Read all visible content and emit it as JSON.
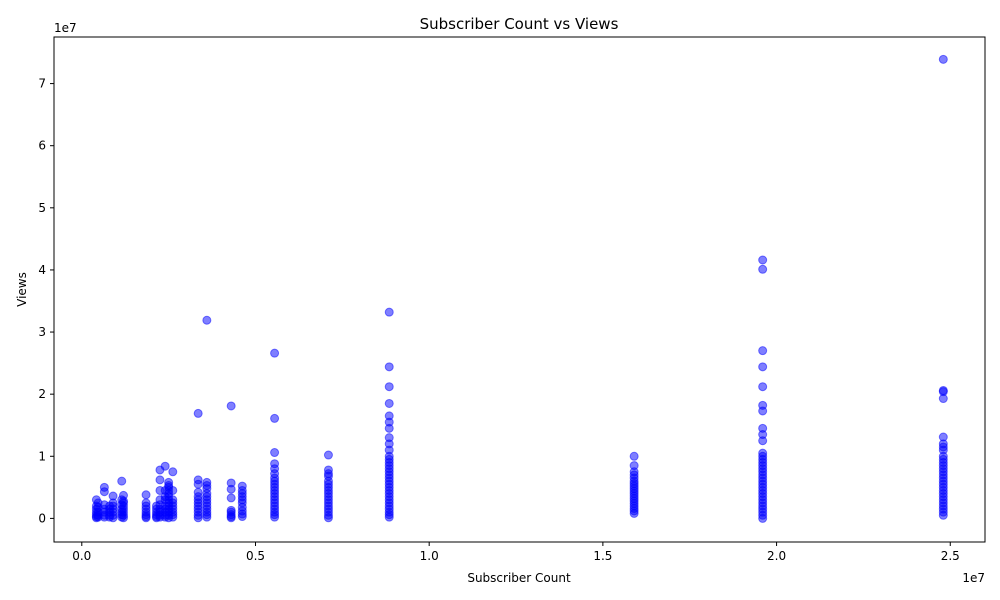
{
  "chart_data": {
    "type": "scatter",
    "title": "Subscriber Count vs Views",
    "xlabel": "Subscriber Count",
    "ylabel": "Views",
    "x_offset_label": "1e7",
    "y_offset_label": "1e7",
    "xlim": [
      -0.08,
      2.6
    ],
    "ylim": [
      -0.38,
      7.75
    ],
    "x_unit_scale": "1e7",
    "y_unit_scale": "1e7",
    "xticks": [
      0.0,
      0.5,
      1.0,
      1.5,
      2.0,
      2.5
    ],
    "xtick_labels": [
      "0.0",
      "0.5",
      "1.0",
      "1.5",
      "2.0",
      "2.5"
    ],
    "yticks": [
      0,
      1,
      2,
      3,
      4,
      5,
      6,
      7
    ],
    "ytick_labels": [
      "0",
      "1",
      "2",
      "3",
      "4",
      "5",
      "6",
      "7"
    ],
    "grid": false,
    "marker_color": "#0000ff",
    "marker_alpha": 0.5,
    "columns": [
      {
        "x": 0.042,
        "values": [
          0.01,
          0.03,
          0.06,
          0.1,
          0.15,
          0.2,
          0.3
        ]
      },
      {
        "x": 0.047,
        "values": [
          0.02,
          0.05,
          0.1,
          0.18,
          0.25
        ]
      },
      {
        "x": 0.065,
        "values": [
          0.02,
          0.05,
          0.1,
          0.15,
          0.22,
          0.43,
          0.5
        ]
      },
      {
        "x": 0.08,
        "values": [
          0.02,
          0.05,
          0.1,
          0.15,
          0.2
        ]
      },
      {
        "x": 0.09,
        "values": [
          0.01,
          0.05,
          0.1,
          0.15,
          0.2,
          0.25,
          0.36
        ]
      },
      {
        "x": 0.115,
        "values": [
          0.02,
          0.06,
          0.1,
          0.15,
          0.22,
          0.3,
          0.6
        ]
      },
      {
        "x": 0.12,
        "values": [
          0.01,
          0.05,
          0.1,
          0.15,
          0.2,
          0.25,
          0.28,
          0.37
        ]
      },
      {
        "x": 0.185,
        "values": [
          0.01,
          0.03,
          0.06,
          0.1,
          0.15,
          0.2,
          0.25,
          0.38
        ]
      },
      {
        "x": 0.215,
        "values": [
          0.01,
          0.03,
          0.06,
          0.1,
          0.15,
          0.2
        ]
      },
      {
        "x": 0.225,
        "values": [
          0.02,
          0.05,
          0.1,
          0.15,
          0.22,
          0.3,
          0.45,
          0.62,
          0.78
        ]
      },
      {
        "x": 0.24,
        "values": [
          0.02,
          0.05,
          0.1,
          0.15,
          0.2,
          0.3,
          0.35,
          0.45,
          0.84
        ]
      },
      {
        "x": 0.25,
        "values": [
          0.01,
          0.05,
          0.1,
          0.15,
          0.2,
          0.25,
          0.3,
          0.35,
          0.4,
          0.45,
          0.5,
          0.53,
          0.58
        ]
      },
      {
        "x": 0.262,
        "values": [
          0.02,
          0.06,
          0.1,
          0.15,
          0.2,
          0.25,
          0.3,
          0.45,
          0.75
        ]
      },
      {
        "x": 0.335,
        "values": [
          0.01,
          0.05,
          0.1,
          0.15,
          0.2,
          0.25,
          0.3,
          0.35,
          0.42,
          0.55,
          0.62,
          1.69
        ]
      },
      {
        "x": 0.36,
        "values": [
          0.02,
          0.06,
          0.1,
          0.15,
          0.2,
          0.25,
          0.3,
          0.35,
          0.4,
          0.48,
          0.53,
          0.58,
          3.19
        ]
      },
      {
        "x": 0.43,
        "values": [
          0.01,
          0.03,
          0.06,
          0.1,
          0.13,
          0.33,
          0.47,
          0.57,
          1.81
        ]
      },
      {
        "x": 0.462,
        "values": [
          0.03,
          0.07,
          0.12,
          0.18,
          0.25,
          0.3,
          0.35,
          0.4,
          0.45,
          0.52
        ]
      },
      {
        "x": 0.555,
        "values": [
          0.02,
          0.06,
          0.1,
          0.15,
          0.2,
          0.25,
          0.3,
          0.35,
          0.4,
          0.45,
          0.5,
          0.55,
          0.6,
          0.65,
          0.72,
          0.8,
          0.88,
          1.06,
          1.61,
          2.66
        ]
      },
      {
        "x": 0.71,
        "values": [
          0.01,
          0.05,
          0.1,
          0.15,
          0.2,
          0.25,
          0.3,
          0.35,
          0.4,
          0.45,
          0.5,
          0.55,
          0.6,
          0.68,
          0.72,
          0.78,
          1.02
        ]
      },
      {
        "x": 0.885,
        "values": [
          0.02,
          0.06,
          0.1,
          0.15,
          0.2,
          0.25,
          0.3,
          0.35,
          0.4,
          0.45,
          0.5,
          0.55,
          0.6,
          0.65,
          0.7,
          0.75,
          0.8,
          0.85,
          0.9,
          0.95,
          1.0,
          1.1,
          1.2,
          1.3,
          1.45,
          1.55,
          1.65,
          1.85,
          2.12,
          2.44,
          3.32
        ]
      },
      {
        "x": 1.59,
        "values": [
          0.08,
          0.12,
          0.16,
          0.2,
          0.24,
          0.28,
          0.32,
          0.36,
          0.4,
          0.44,
          0.48,
          0.52,
          0.56,
          0.6,
          0.65,
          0.7,
          0.75,
          0.85,
          1.0
        ]
      },
      {
        "x": 1.96,
        "values": [
          0.0,
          0.05,
          0.1,
          0.15,
          0.2,
          0.25,
          0.3,
          0.35,
          0.4,
          0.45,
          0.5,
          0.55,
          0.6,
          0.65,
          0.7,
          0.75,
          0.8,
          0.85,
          0.9,
          0.95,
          1.0,
          1.05,
          1.25,
          1.35,
          1.45,
          1.73,
          1.82,
          2.12,
          2.44,
          2.7,
          4.01,
          4.16
        ]
      },
      {
        "x": 2.48,
        "values": [
          0.05,
          0.1,
          0.15,
          0.2,
          0.25,
          0.3,
          0.35,
          0.4,
          0.45,
          0.5,
          0.55,
          0.6,
          0.65,
          0.7,
          0.75,
          0.8,
          0.85,
          0.9,
          0.95,
          1.0,
          1.1,
          1.15,
          1.2,
          1.31,
          1.93,
          2.04,
          2.06,
          7.39
        ]
      }
    ]
  }
}
